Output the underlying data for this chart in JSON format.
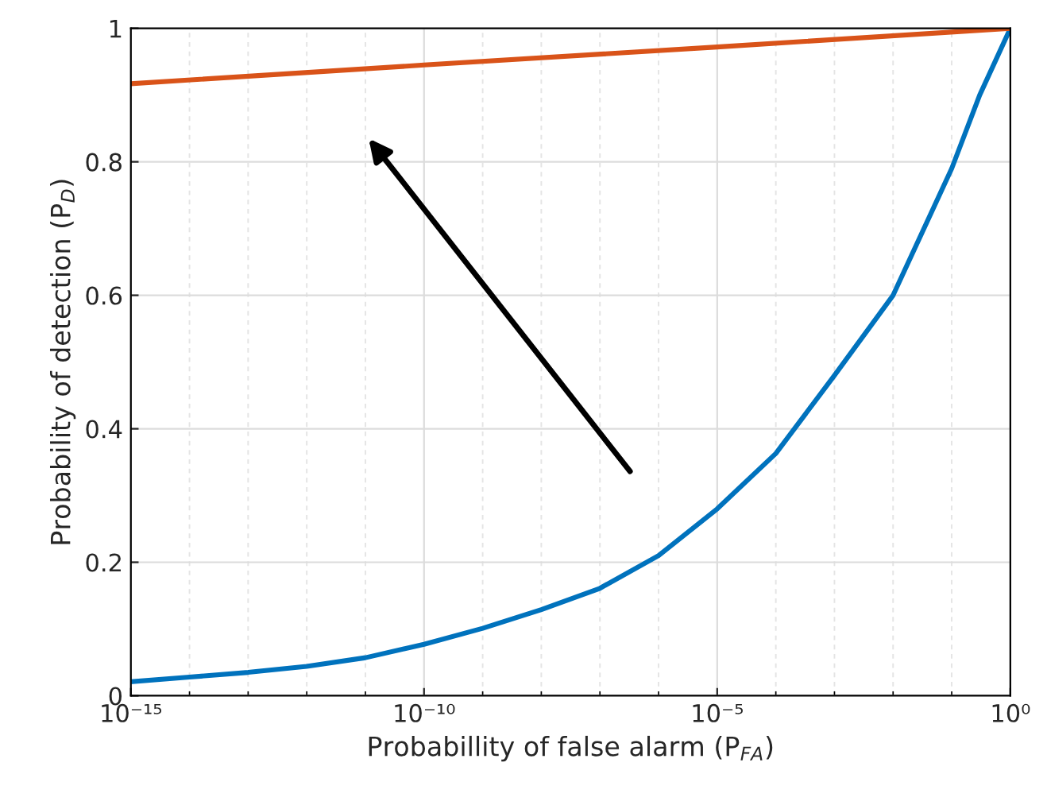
{
  "chart_data": {
    "type": "line",
    "xlabel": "Probabillity of false alarm (P$_{FA}$)",
    "ylabel": "Probability of detection (P$_{D}$)",
    "log": "x",
    "grid": true,
    "legend": false,
    "marker": "none",
    "line_style": "solid",
    "xlim": [
      1e-15,
      1
    ],
    "ylim": [
      0,
      1
    ],
    "xticks": [
      {
        "value": 1e-15,
        "label": "10⁻¹⁵"
      },
      {
        "value": 1e-14,
        "label": null
      },
      {
        "value": 1e-13,
        "label": null
      },
      {
        "value": 1e-12,
        "label": null
      },
      {
        "value": 1e-11,
        "label": null
      },
      {
        "value": 1e-10,
        "label": "10⁻¹⁰"
      },
      {
        "value": 1e-09,
        "label": null
      },
      {
        "value": 1e-08,
        "label": null
      },
      {
        "value": 1e-07,
        "label": null
      },
      {
        "value": 1e-06,
        "label": null
      },
      {
        "value": 1e-05,
        "label": "10⁻⁵"
      },
      {
        "value": 0.0001,
        "label": null
      },
      {
        "value": 0.001,
        "label": null
      },
      {
        "value": 0.01,
        "label": null
      },
      {
        "value": 0.1,
        "label": null
      },
      {
        "value": 1,
        "label": "10⁰"
      }
    ],
    "yticks": [
      0,
      {
        "value": 0.2,
        "label": "0.2"
      },
      {
        "value": 0.4,
        "label": "0.4"
      },
      {
        "value": 0.6,
        "label": "0.6"
      },
      {
        "value": 0.8,
        "label": "0.8"
      },
      1
    ],
    "series": [
      {
        "color": "#0072bd",
        "x": [
          1e-15,
          1e-14,
          1e-13,
          1e-12,
          1e-11,
          1e-10,
          1e-09,
          1e-08,
          1e-07,
          1e-06,
          1e-05,
          0.0001,
          0.001,
          0.01,
          0.1,
          0.3,
          1
        ],
        "values": [
          0.021,
          0.028,
          0.035,
          0.044,
          0.057,
          0.077,
          0.101,
          0.129,
          0.161,
          0.21,
          0.28,
          0.363,
          0.48,
          0.6,
          0.79,
          0.9,
          1.0
        ]
      },
      {
        "color": "#d95319",
        "x": [
          1e-15,
          1e-10,
          1e-05,
          1
        ],
        "values": [
          0.917,
          0.945,
          0.972,
          1.0
        ]
      }
    ]
  }
}
